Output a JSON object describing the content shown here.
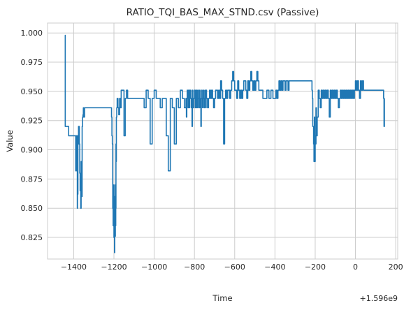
{
  "chart_data": {
    "type": "line",
    "title": "RATIO_TQI_BAS_MAX_STND.csv (Passive)",
    "xlabel": "Time",
    "ylabel": "Value",
    "x_offset_label": "+1.596e9",
    "xlim": [
      -1530,
      210
    ],
    "ylim": [
      0.8065,
      1.0085
    ],
    "x_ticks": [
      -1400,
      -1200,
      -1000,
      -800,
      -600,
      -400,
      -200,
      0,
      200
    ],
    "x_tick_labels": [
      "−1400",
      "−1200",
      "−1000",
      "−800",
      "−600",
      "−400",
      "−200",
      "0",
      "200"
    ],
    "y_ticks": [
      0.825,
      0.85,
      0.875,
      0.9,
      0.925,
      0.95,
      0.975,
      1.0
    ],
    "y_tick_labels": [
      "0.825",
      "0.850",
      "0.875",
      "0.900",
      "0.925",
      "0.950",
      "0.975",
      "1.000"
    ],
    "grid": true,
    "line_color": "#1f77b4",
    "series": [
      {
        "x": [
          -1443,
          -1442,
          -1442,
          -1425,
          -1425,
          -1390,
          -1390,
          -1387,
          -1385,
          -1384,
          -1382,
          -1381,
          -1380,
          -1379,
          -1378,
          -1376,
          -1375,
          -1372,
          -1370,
          -1368,
          -1365,
          -1363,
          -1362,
          -1360,
          -1358,
          -1356,
          -1354,
          -1352,
          -1350,
          -1346,
          -1343,
          -1340,
          -1338,
          -1335,
          -1330,
          -1330,
          -1300,
          -1270,
          -1240,
          -1212,
          -1212,
          -1210,
          -1208,
          -1206,
          -1204,
          -1203,
          -1202,
          -1201,
          -1200,
          -1199,
          -1198,
          -1197,
          -1196,
          -1195,
          -1194,
          -1193,
          -1192,
          -1191,
          -1190,
          -1189,
          -1188,
          -1186,
          -1184,
          -1180,
          -1176,
          -1172,
          -1168,
          -1164,
          -1160,
          -1156,
          -1150,
          -1144,
          -1138,
          -1132,
          -1126,
          -1120,
          -1110,
          -1100,
          -1090,
          -1080,
          -1070,
          -1060,
          -1050,
          -1040,
          -1030,
          -1020,
          -1010,
          -1000,
          -990,
          -980,
          -970,
          -960,
          -950,
          -940,
          -930,
          -920,
          -910,
          -900,
          -890,
          -880,
          -870,
          -860,
          -850,
          -842,
          -840,
          -838,
          -836,
          -834,
          -832,
          -830,
          -828,
          -826,
          -824,
          -822,
          -820,
          -818,
          -816,
          -814,
          -812,
          -810,
          -808,
          -806,
          -804,
          -802,
          -800,
          -798,
          -796,
          -794,
          -792,
          -790,
          -788,
          -786,
          -784,
          -782,
          -780,
          -778,
          -776,
          -774,
          -772,
          -770,
          -768,
          -766,
          -764,
          -762,
          -760,
          -758,
          -756,
          -754,
          -752,
          -750,
          -748,
          -746,
          -744,
          -742,
          -740,
          -735,
          -730,
          -725,
          -720,
          -715,
          -710,
          -705,
          -700,
          -695,
          -690,
          -685,
          -680,
          -675,
          -670,
          -665,
          -660,
          -655,
          -650,
          -645,
          -640,
          -635,
          -630,
          -625,
          -620,
          -615,
          -610,
          -605,
          -600,
          -595,
          -590,
          -585,
          -580,
          -575,
          -570,
          -565,
          -560,
          -555,
          -550,
          -545,
          -540,
          -535,
          -530,
          -525,
          -520,
          -515,
          -510,
          -505,
          -500,
          -495,
          -490,
          -485,
          -480,
          -470,
          -460,
          -450,
          -440,
          -430,
          -420,
          -410,
          -400,
          -395,
          -390,
          -385,
          -380,
          -375,
          -370,
          -365,
          -360,
          -355,
          -350,
          -345,
          -340,
          -335,
          -330,
          -325,
          -320,
          -315,
          -310,
          -305,
          -300,
          -295,
          -290,
          -285,
          -280,
          -275,
          -270,
          -265,
          -260,
          -255,
          -250,
          -245,
          -240,
          -235,
          -230,
          -225,
          -220,
          -218,
          -216,
          -214,
          -212,
          -210,
          -208,
          -206,
          -204,
          -202,
          -200,
          -198,
          -196,
          -194,
          -192,
          -190,
          -185,
          -180,
          -175,
          -170,
          -165,
          -160,
          -155,
          -150,
          -145,
          -140,
          -135,
          -130,
          -125,
          -120,
          -115,
          -110,
          -105,
          -100,
          -95,
          -90,
          -85,
          -80,
          -75,
          -70,
          -65,
          -60,
          -55,
          -50,
          -45,
          -40,
          -35,
          -30,
          -25,
          -20,
          -15,
          -10,
          -5,
          0,
          5,
          10,
          15,
          20,
          25,
          30,
          35,
          40,
          45,
          50,
          55,
          60,
          65,
          70,
          75,
          80,
          85,
          90,
          95,
          100,
          105,
          110,
          115,
          120,
          125,
          130,
          135,
          140,
          142,
          144
        ],
        "y": [
          0.92,
          0.998,
          0.92,
          0.92,
          0.912,
          0.912,
          0.882,
          0.912,
          0.89,
          0.912,
          0.85,
          0.905,
          0.862,
          0.912,
          0.905,
          0.92,
          0.92,
          0.905,
          0.88,
          0.865,
          0.85,
          0.89,
          0.875,
          0.86,
          0.92,
          0.928,
          0.93,
          0.936,
          0.928,
          0.936,
          0.936,
          0.936,
          0.936,
          0.936,
          0.936,
          0.936,
          0.936,
          0.936,
          0.936,
          0.936,
          0.928,
          0.912,
          0.905,
          0.85,
          0.835,
          0.865,
          0.84,
          0.87,
          0.825,
          0.86,
          0.84,
          0.812,
          0.86,
          0.835,
          0.826,
          0.87,
          0.835,
          0.85,
          0.905,
          0.89,
          0.928,
          0.936,
          0.944,
          0.936,
          0.93,
          0.944,
          0.936,
          0.951,
          0.951,
          0.951,
          0.912,
          0.944,
          0.951,
          0.944,
          0.944,
          0.944,
          0.944,
          0.944,
          0.944,
          0.944,
          0.944,
          0.944,
          0.936,
          0.951,
          0.944,
          0.905,
          0.944,
          0.951,
          0.944,
          0.944,
          0.936,
          0.944,
          0.944,
          0.912,
          0.882,
          0.944,
          0.936,
          0.905,
          0.944,
          0.936,
          0.951,
          0.944,
          0.936,
          0.944,
          0.928,
          0.944,
          0.951,
          0.944,
          0.936,
          0.951,
          0.944,
          0.936,
          0.951,
          0.944,
          0.951,
          0.944,
          0.936,
          0.944,
          0.92,
          0.951,
          0.944,
          0.936,
          0.944,
          0.944,
          0.951,
          0.944,
          0.936,
          0.951,
          0.944,
          0.936,
          0.951,
          0.944,
          0.936,
          0.944,
          0.951,
          0.944,
          0.936,
          0.951,
          0.944,
          0.936,
          0.92,
          0.944,
          0.951,
          0.944,
          0.936,
          0.944,
          0.951,
          0.944,
          0.936,
          0.944,
          0.951,
          0.944,
          0.936,
          0.951,
          0.944,
          0.936,
          0.944,
          0.951,
          0.944,
          0.951,
          0.944,
          0.936,
          0.944,
          0.951,
          0.951,
          0.944,
          0.951,
          0.944,
          0.959,
          0.951,
          0.944,
          0.905,
          0.944,
          0.951,
          0.944,
          0.951,
          0.951,
          0.944,
          0.951,
          0.959,
          0.967,
          0.959,
          0.951,
          0.951,
          0.944,
          0.959,
          0.951,
          0.944,
          0.951,
          0.944,
          0.951,
          0.959,
          0.959,
          0.951,
          0.944,
          0.959,
          0.951,
          0.959,
          0.967,
          0.959,
          0.951,
          0.959,
          0.951,
          0.959,
          0.967,
          0.959,
          0.951,
          0.951,
          0.944,
          0.944,
          0.951,
          0.944,
          0.951,
          0.944,
          0.944,
          0.951,
          0.944,
          0.951,
          0.959,
          0.951,
          0.959,
          0.951,
          0.959,
          0.959,
          0.951,
          0.959,
          0.959,
          0.951,
          0.959,
          0.959,
          0.959,
          0.959,
          0.959,
          0.959,
          0.959,
          0.959,
          0.959,
          0.959,
          0.959,
          0.959,
          0.959,
          0.959,
          0.959,
          0.959,
          0.959,
          0.959,
          0.959,
          0.959,
          0.959,
          0.959,
          0.959,
          0.959,
          0.951,
          0.944,
          0.92,
          0.92,
          0.905,
          0.89,
          0.928,
          0.89,
          0.912,
          0.905,
          0.936,
          0.92,
          0.912,
          0.928,
          0.951,
          0.944,
          0.936,
          0.951,
          0.944,
          0.951,
          0.944,
          0.951,
          0.944,
          0.951,
          0.944,
          0.928,
          0.951,
          0.944,
          0.951,
          0.944,
          0.951,
          0.944,
          0.951,
          0.944,
          0.936,
          0.944,
          0.951,
          0.944,
          0.951,
          0.944,
          0.951,
          0.944,
          0.951,
          0.944,
          0.951,
          0.944,
          0.951,
          0.944,
          0.951,
          0.944,
          0.951,
          0.959,
          0.951,
          0.959,
          0.951,
          0.944,
          0.959,
          0.951,
          0.959,
          0.951,
          0.951,
          0.951,
          0.951,
          0.951,
          0.951,
          0.951,
          0.951,
          0.951,
          0.951,
          0.951,
          0.951,
          0.951,
          0.951,
          0.951,
          0.951,
          0.951,
          0.951,
          0.951,
          0.951,
          0.944,
          0.92,
          0.944
        ]
      }
    ]
  }
}
